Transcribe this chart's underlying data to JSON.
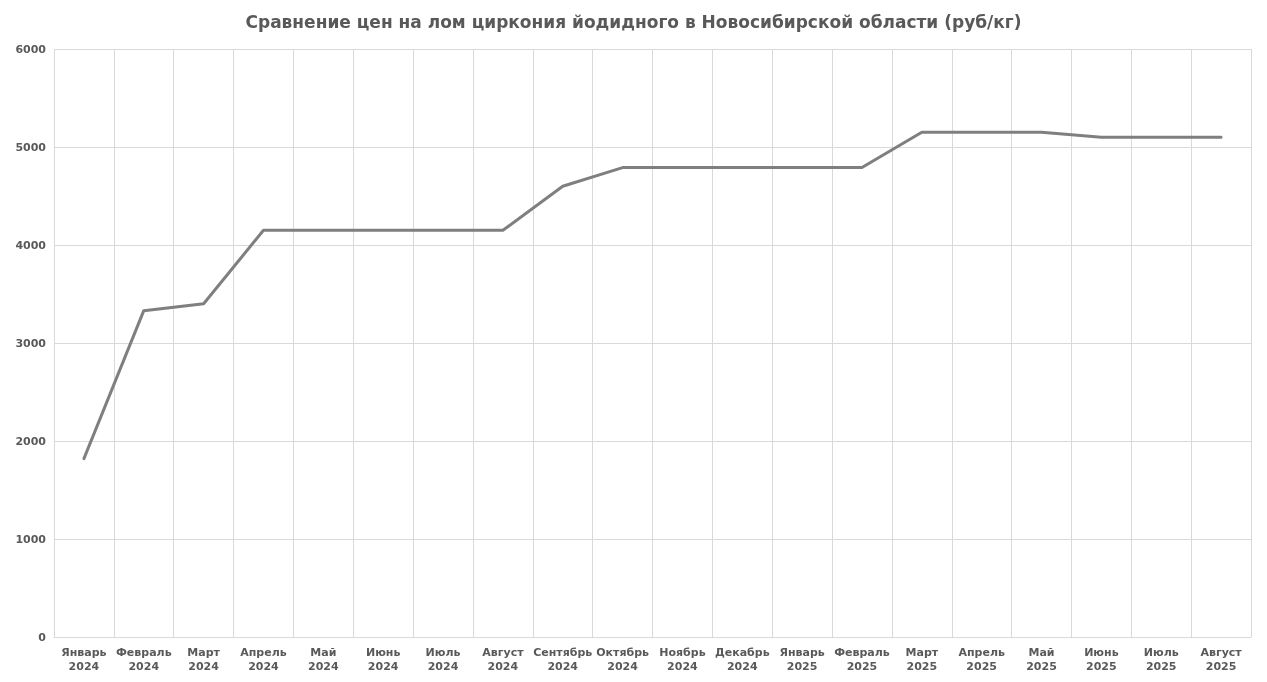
{
  "chart_data": {
    "type": "line",
    "title": "Сравнение цен на лом циркония йодидного в Новосибирской области (руб/кг)",
    "categories": [
      "Январь\n2024",
      "Февраль\n2024",
      "Март\n2024",
      "Апрель\n2024",
      "Май\n2024",
      "Июнь\n2024",
      "Июль\n2024",
      "Август\n2024",
      "Сентябрь\n2024",
      "Октябрь\n2024",
      "Ноябрь\n2024",
      "Декабрь\n2024",
      "Январь\n2025",
      "Февраль\n2025",
      "Март\n2025",
      "Апрель\n2025",
      "Май\n2025",
      "Июнь\n2025",
      "Июль\n2025",
      "Август\n2025"
    ],
    "series": [
      {
        "color": "#7f7f7f",
        "values": [
          1820,
          3330,
          3400,
          4150,
          4150,
          4150,
          4150,
          4150,
          4600,
          4790,
          4790,
          4790,
          4790,
          4790,
          5150,
          5150,
          5150,
          5100,
          5100,
          5100
        ]
      }
    ],
    "ylim": [
      0,
      6000
    ],
    "yticks": [
      0,
      1000,
      2000,
      3000,
      4000,
      5000,
      6000
    ],
    "grid": true,
    "marker": "none",
    "line_style": "solid"
  }
}
